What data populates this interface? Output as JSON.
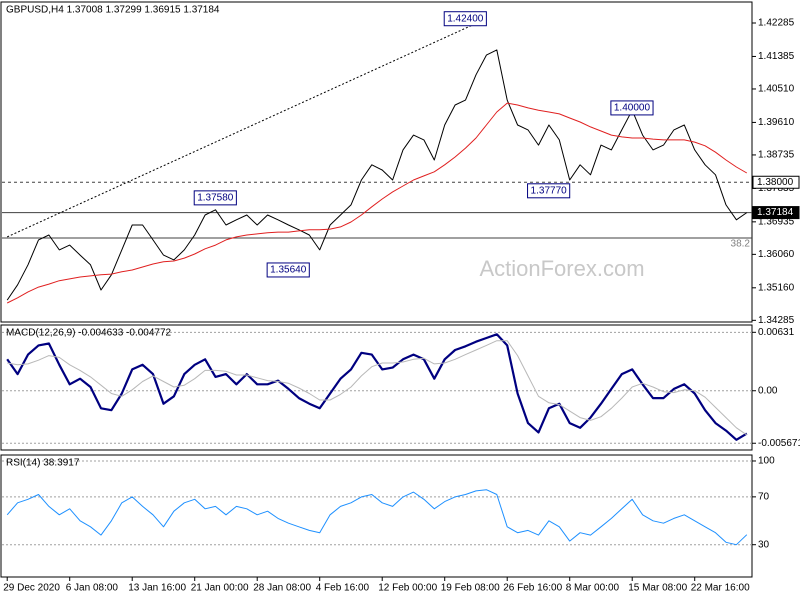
{
  "chart_data": [
    {
      "type": "line",
      "title": "GBPUSD,H4  1.37008 1.37299 1.36915 1.37184",
      "series": [
        {
          "color": "#000000",
          "width": 1,
          "values": [
            1.3483,
            1.3524,
            1.3578,
            1.3645,
            1.3658,
            1.3618,
            1.3631,
            1.3604,
            1.3578,
            1.351,
            1.3551,
            1.3618,
            1.3685,
            1.3685,
            1.3645,
            1.3604,
            1.3591,
            1.3618,
            1.3658,
            1.3712,
            1.3726,
            1.3685,
            1.3699,
            1.3712,
            1.3685,
            1.3712,
            1.3699,
            1.3685,
            1.3672,
            1.3658,
            1.3618,
            1.3685,
            1.3712,
            1.3739,
            1.3806,
            1.3847,
            1.3833,
            1.3806,
            1.3887,
            1.3927,
            1.3914,
            1.386,
            1.3954,
            1.4008,
            1.4021,
            1.4089,
            1.4142,
            1.4156,
            1.4021,
            1.3954,
            1.3941,
            1.39,
            1.3954,
            1.3914,
            1.3806,
            1.3847,
            1.382,
            1.39,
            1.3887,
            1.3941,
            1.3994,
            1.3927,
            1.3887,
            1.39,
            1.3941,
            1.3954,
            1.3887,
            1.3847,
            1.382,
            1.3739,
            1.3699,
            1.37184
          ]
        },
        {
          "color": "#e02020",
          "width": 1,
          "values": [
            1.3475,
            1.3489,
            1.3505,
            1.3518,
            1.3526,
            1.3535,
            1.354,
            1.3545,
            1.3548,
            1.3551,
            1.3553,
            1.3559,
            1.3564,
            1.3572,
            1.358,
            1.3586,
            1.3588,
            1.3596,
            1.3607,
            1.3621,
            1.3631,
            1.3645,
            1.3653,
            1.3658,
            1.3661,
            1.3664,
            1.3666,
            1.3666,
            1.3669,
            1.3672,
            1.3672,
            1.3674,
            1.368,
            1.3693,
            1.3712,
            1.3734,
            1.3755,
            1.3774,
            1.379,
            1.3806,
            1.3817,
            1.3828,
            1.3847,
            1.3868,
            1.3892,
            1.3919,
            1.3954,
            1.3989,
            1.4013,
            1.4008,
            1.4,
            1.3994,
            1.3989,
            1.3984,
            1.3973,
            1.3962,
            1.3949,
            1.3938,
            1.3927,
            1.3922,
            1.3919,
            1.3919,
            1.3916,
            1.3914,
            1.3914,
            1.3914,
            1.3908,
            1.3898,
            1.3881,
            1.386,
            1.3841,
            1.3825
          ]
        }
      ],
      "ylim": [
        1.3424,
        1.4285
      ],
      "yticks": [
        1.42285,
        1.41385,
        {
          "value": 1.4051,
          "label": "1.40510"
        },
        {
          "value": 1.3961,
          "label": "1.39610"
        },
        1.38735,
        1.37835,
        1.36935,
        {
          "value": 1.3606,
          "label": "1.36060"
        },
        {
          "value": 1.3516,
          "label": "1.35160"
        },
        1.34285
      ],
      "grid": false,
      "levels": [
        {
          "value": 1.38,
          "label": "1.38000",
          "dashed": true,
          "box_fill": "#ffffff",
          "text_color": "#000000"
        },
        {
          "value": 1.37184,
          "label": "1.37184",
          "dashed": false,
          "box_fill": "#000000",
          "text_color": "#ffffff"
        },
        {
          "value": 1.365,
          "label": "38.2",
          "dashed": false,
          "inside": true,
          "text_color": "#808080"
        }
      ],
      "annotations": [
        {
          "x": 46,
          "value": 1.424,
          "label": "1.42400"
        },
        {
          "x": 22,
          "value": 1.3758,
          "label": "1.37580"
        },
        {
          "x": 29,
          "value": 1.3564,
          "label": "1.35640"
        },
        {
          "x": 54,
          "value": 1.3777,
          "label": "1.37770"
        },
        {
          "x": 62,
          "value": 1.4,
          "label": "1.40000"
        }
      ],
      "trendline": {
        "x": [
          0,
          46
        ],
        "values": [
          1.3653,
          1.424
        ]
      },
      "watermark": "ActionForex.com"
    },
    {
      "type": "line",
      "title": "MACD(12,26,9) -0.004633 -0.004772",
      "series": [
        {
          "color": "#000080",
          "width": 2.2,
          "values": [
            0.0034,
            0.0018,
            0.0039,
            0.0049,
            0.0051,
            0.0028,
            0.0007,
            0.0013,
            0.0004,
            -0.0019,
            -0.0021,
            -0.0003,
            0.0023,
            0.0028,
            0.0018,
            -0.0014,
            -0.0006,
            0.0018,
            0.0028,
            0.0034,
            0.0015,
            0.0018,
            0.0007,
            0.0018,
            0.0007,
            0.0007,
            0.0011,
            0.0002,
            -0.0008,
            -0.0014,
            -0.0019,
            -0.0003,
            0.0013,
            0.0023,
            0.0041,
            0.0039,
            0.0023,
            0.0025,
            0.0034,
            0.0039,
            0.0034,
            0.0013,
            0.0034,
            0.0044,
            0.0048,
            0.0053,
            0.0057,
            0.0061,
            0.0049,
            -0.0003,
            -0.0035,
            -0.0045,
            -0.0019,
            -0.0014,
            -0.0035,
            -0.004,
            -0.0029,
            -0.0014,
            0.0002,
            0.0018,
            0.0023,
            0.0007,
            -0.0008,
            -0.0008,
            0.0002,
            0.0007,
            -0.0003,
            -0.0021,
            -0.0035,
            -0.0043,
            -0.0053,
            -0.004633
          ]
        },
        {
          "color": "#b8b8b8",
          "width": 1,
          "values": [
            0.003,
            0.0028,
            0.0029,
            0.0033,
            0.0038,
            0.0036,
            0.0028,
            0.0022,
            0.0015,
            0.0006,
            -0.0003,
            -0.0006,
            0.0001,
            0.001,
            0.0016,
            0.001,
            0.0004,
            0.0006,
            0.0013,
            0.0022,
            0.0022,
            0.0021,
            0.0017,
            0.0017,
            0.0014,
            0.0011,
            0.001,
            0.0008,
            0.0003,
            -0.0003,
            -0.001,
            -0.001,
            -0.0004,
            0.0004,
            0.0016,
            0.0026,
            0.003,
            0.003,
            0.0031,
            0.0034,
            0.0035,
            0.0029,
            0.003,
            0.0034,
            0.0039,
            0.0044,
            0.0049,
            0.0054,
            0.0054,
            0.0038,
            0.0016,
            -0.0006,
            -0.0013,
            -0.0015,
            -0.0022,
            -0.0029,
            -0.0032,
            -0.0028,
            -0.0019,
            -0.0008,
            0.0004,
            0.0008,
            0.0004,
            -0.0001,
            -0.0002,
            0.0001,
            0,
            -0.0007,
            -0.0018,
            -0.0029,
            -0.004,
            -0.004772
          ]
        }
      ],
      "ylim": [
        -0.0064,
        0.0071
      ],
      "yticks": [
        0.00631,
        {
          "value": 0,
          "label": "0.00"
        },
        -0.005671
      ],
      "grid": true
    },
    {
      "type": "line",
      "title": "RSI(14) 38.3917",
      "categories": [
        "29 Dec 2020",
        null,
        null,
        null,
        null,
        null,
        "6 Jan 08:00",
        null,
        null,
        null,
        null,
        null,
        "13 Jan 16:00",
        null,
        null,
        null,
        null,
        null,
        "21 Jan 00:00",
        null,
        null,
        null,
        null,
        null,
        "28 Jan 08:00",
        null,
        null,
        null,
        null,
        null,
        "4 Feb 16:00",
        null,
        null,
        null,
        null,
        null,
        "12 Feb 00:00",
        null,
        null,
        null,
        null,
        null,
        "19 Feb 08:00",
        null,
        null,
        null,
        null,
        null,
        "26 Feb 16:00",
        null,
        null,
        null,
        null,
        null,
        "8 Mar 00:00",
        null,
        null,
        null,
        null,
        null,
        "15 Mar 08:00",
        null,
        null,
        null,
        null,
        null,
        "22 Mar 16:00",
        null,
        null,
        null,
        null,
        null
      ],
      "series": [
        {
          "color": "#1e90ff",
          "width": 1,
          "values": [
            55,
            65,
            68,
            72,
            62,
            55,
            60,
            50,
            45,
            38,
            50,
            65,
            70,
            62,
            55,
            45,
            58,
            65,
            68,
            60,
            62,
            55,
            62,
            60,
            55,
            58,
            52,
            48,
            45,
            42,
            40,
            55,
            62,
            65,
            70,
            72,
            65,
            62,
            70,
            74,
            68,
            60,
            66,
            70,
            72,
            75,
            76,
            72,
            45,
            40,
            42,
            38,
            50,
            45,
            33,
            40,
            38,
            45,
            52,
            60,
            68,
            55,
            50,
            48,
            52,
            55,
            50,
            45,
            40,
            32,
            30,
            38.3917
          ]
        }
      ],
      "ylim": [
        3,
        105
      ],
      "yticks": [
        100,
        70,
        30
      ],
      "grid": true
    }
  ]
}
